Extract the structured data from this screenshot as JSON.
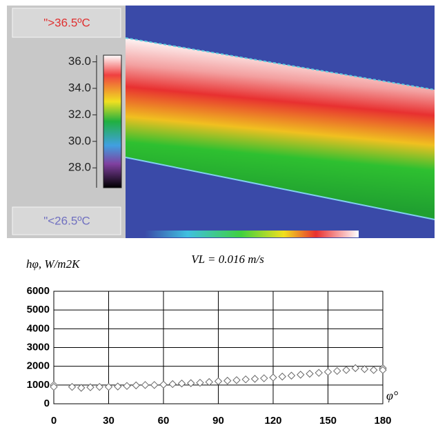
{
  "chart_data": [
    {
      "type": "colorbar",
      "annotations": [
        "\">36.5ºC",
        "\"<26.5ºC"
      ],
      "ylim": [
        26.5,
        36.5
      ],
      "yticks": [
        {
          "value": 36,
          "label": "36.0"
        },
        {
          "value": 34,
          "label": "34.0"
        },
        {
          "value": 32,
          "label": "32.0"
        },
        {
          "value": 30,
          "label": "30.0"
        },
        {
          "value": 28,
          "label": "28.0"
        }
      ]
    },
    {
      "type": "scatter",
      "title": "VL = 0.016 m/s",
      "ylabel": "hφ, W/m2K",
      "xlabel": "φ°",
      "color": "#666666",
      "grid": true,
      "xlim": [
        0,
        180
      ],
      "xticks": [
        0,
        30,
        60,
        90,
        120,
        150,
        180
      ],
      "ylim": [
        0,
        6000
      ],
      "yticks": [
        0,
        1000,
        2000,
        3000,
        4000,
        5000,
        6000
      ],
      "x": [
        0,
        0,
        10,
        15,
        20,
        25,
        30,
        35,
        40,
        45,
        50,
        55,
        60,
        65,
        70,
        75,
        80,
        85,
        90,
        95,
        100,
        105,
        110,
        115,
        120,
        125,
        130,
        135,
        140,
        145,
        150,
        155,
        160,
        165,
        170,
        175,
        180,
        180
      ],
      "values": [
        1000,
        900,
        900,
        850,
        880,
        900,
        900,
        920,
        950,
        980,
        1000,
        1000,
        1020,
        1050,
        1080,
        1100,
        1120,
        1160,
        1200,
        1230,
        1260,
        1300,
        1330,
        1360,
        1400,
        1450,
        1500,
        1550,
        1600,
        1650,
        1700,
        1750,
        1800,
        1900,
        1850,
        1800,
        1900,
        1800
      ]
    }
  ]
}
